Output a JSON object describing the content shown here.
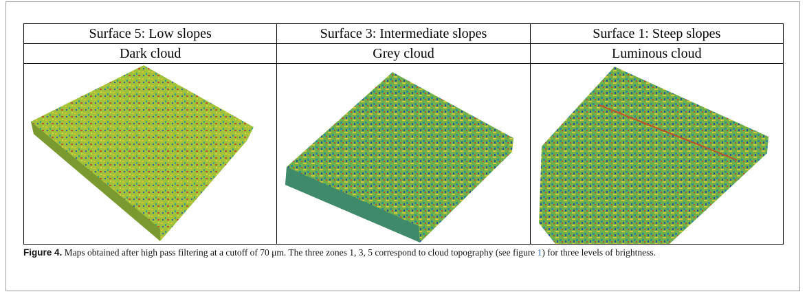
{
  "table": {
    "rows": [
      [
        "Surface 5: Low slopes",
        "Surface 3: Intermediate slopes",
        "Surface 1: Steep slopes"
      ],
      [
        "Dark cloud",
        "Grey cloud",
        "Luminous cloud"
      ]
    ]
  },
  "caption": {
    "label": "Figure 4.",
    "text_before": "Maps obtained after high pass filtering at a cutoff of 70 μm. The three zones 1, 3, 5 correspond to cloud topography (see figure",
    "link": "1",
    "text_after": ") for three levels of brightness."
  }
}
